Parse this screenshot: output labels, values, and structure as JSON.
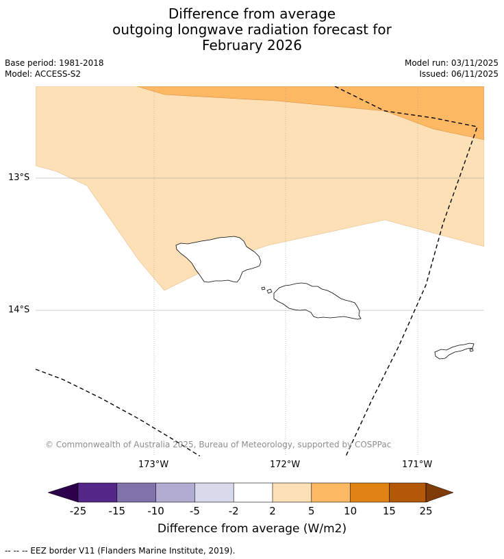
{
  "title": {
    "line1": "Difference from average",
    "line2": "outgoing longwave radiation forecast for",
    "line3": "February 2026"
  },
  "meta": {
    "base_period": "Base period: 1981-2018",
    "model": "Model: ACCESS-S2",
    "model_run": "Model run: 03/11/2025",
    "issued": "Issued: 06/11/2025"
  },
  "axes": {
    "lat_labels": [
      "13°S",
      "14°S"
    ],
    "lon_labels": [
      "173°W",
      "172°W",
      "171°W"
    ]
  },
  "copyright": "© Commonwealth of Australia 2025, Bureau of Meteorology, supported by COSPPac",
  "colorbar": {
    "ticks": [
      "-25",
      "-15",
      "-10",
      "-5",
      "-2",
      "2",
      "5",
      "10",
      "15",
      "25"
    ],
    "colors": {
      "lt_neg25": "#2d004b",
      "neg25_neg15": "#542788",
      "neg15_neg10": "#8073ac",
      "neg10_neg5": "#b2abd2",
      "neg5_neg2": "#d8daeb",
      "neg2_2": "#ffffff",
      "2_5": "#fee0b6",
      "5_10": "#fdb863",
      "10_15": "#e08214",
      "15_25": "#b35806",
      "gt_25": "#7f3b08"
    },
    "label": "Difference from average (W/m2)"
  },
  "map_colors": {
    "light_band": "#fde0b6",
    "orange_band": "#fdb863",
    "coast": "#000000"
  },
  "legend_note": "--  --  -- EEZ border V11 (Flanders Marine Institute, 2019)."
}
